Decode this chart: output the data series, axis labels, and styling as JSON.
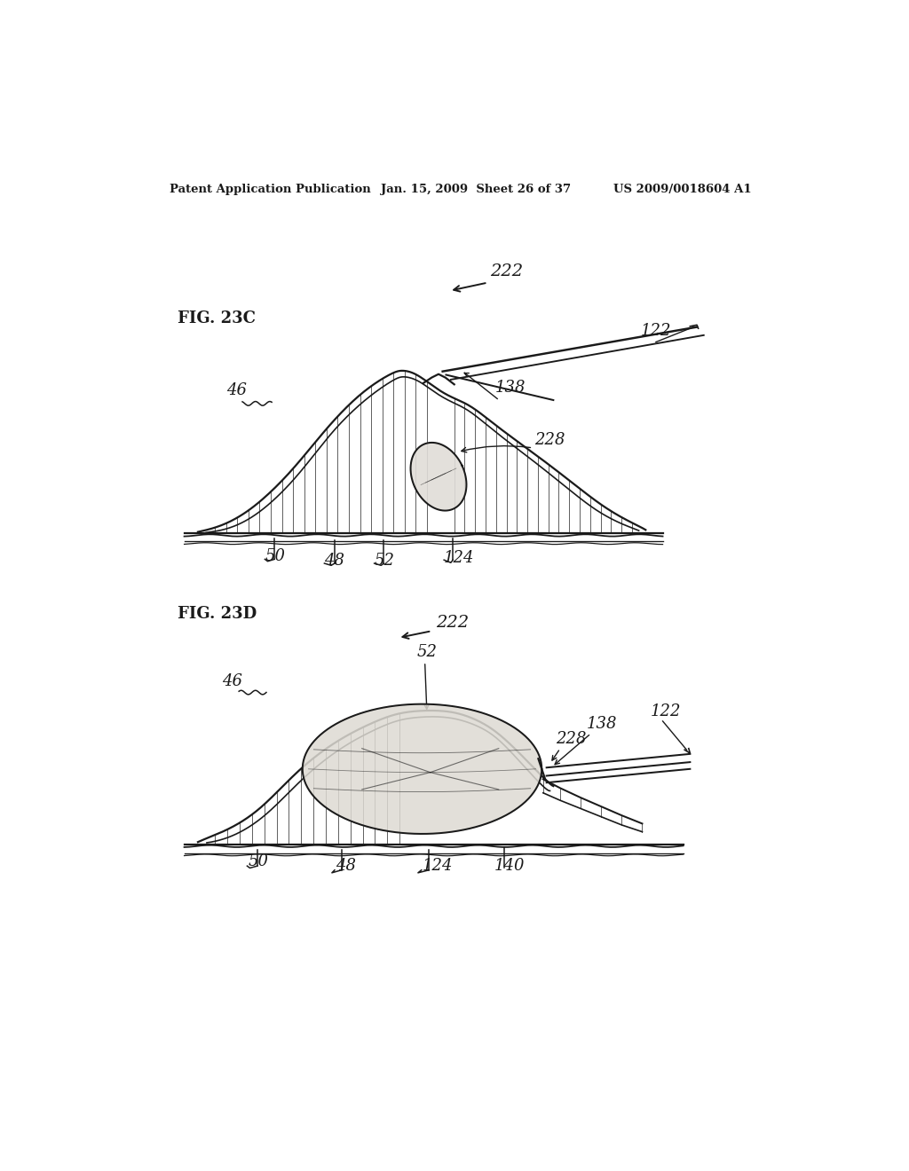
{
  "background_color": "#ffffff",
  "header_text": "Patent Application Publication",
  "header_date": "Jan. 15, 2009  Sheet 26 of 37",
  "header_patent": "US 2009/0018604 A1",
  "fig23c_label": "FIG. 23C",
  "fig23d_label": "FIG. 23D",
  "color": "#1a1a1a"
}
